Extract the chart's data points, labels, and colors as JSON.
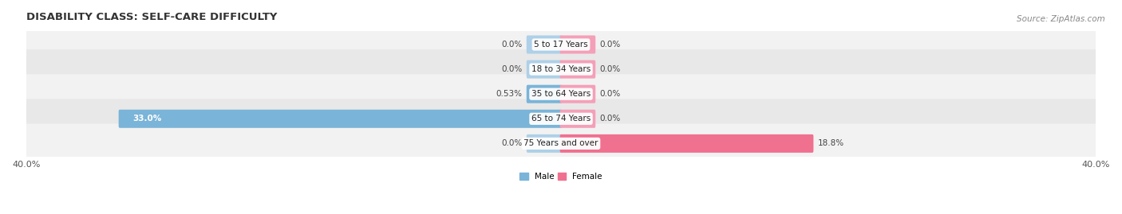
{
  "title": "DISABILITY CLASS: SELF-CARE DIFFICULTY",
  "source": "Source: ZipAtlas.com",
  "categories": [
    "5 to 17 Years",
    "18 to 34 Years",
    "35 to 64 Years",
    "65 to 74 Years",
    "75 Years and over"
  ],
  "male_values": [
    0.0,
    0.0,
    0.53,
    33.0,
    0.0
  ],
  "female_values": [
    0.0,
    0.0,
    0.0,
    0.0,
    18.8
  ],
  "x_max": 40.0,
  "male_color": "#7ab4d8",
  "female_color": "#f07090",
  "male_color_light": "#aed0e8",
  "female_color_light": "#f4a0b8",
  "row_bg_odd": "#f2f2f2",
  "row_bg_even": "#e8e8e8",
  "label_color_dark": "#333333",
  "label_color_white": "#ffffff",
  "title_fontsize": 9.5,
  "source_fontsize": 7.5,
  "tick_fontsize": 8,
  "val_fontsize": 7.5,
  "cat_fontsize": 7.5,
  "min_bar_display": 2.5
}
